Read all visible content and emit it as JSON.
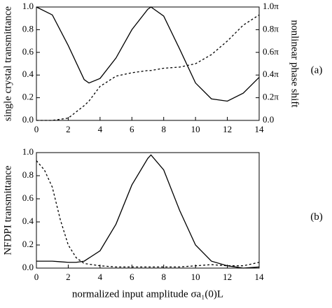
{
  "chart_data": [
    {
      "type": "line",
      "ylabel": "single crystal transmittance",
      "y2label": "nonlinear phase shift",
      "annotation": "(a)",
      "x": [
        0,
        1,
        2,
        3,
        3.3,
        4,
        5,
        6,
        7,
        7.2,
        8,
        9,
        10,
        11,
        12,
        13,
        14
      ],
      "series": [
        {
          "color": "#000000",
          "dash": false,
          "values": [
            1.0,
            0.93,
            0.66,
            0.36,
            0.33,
            0.37,
            0.55,
            0.8,
            0.98,
            1.0,
            0.92,
            0.63,
            0.33,
            0.19,
            0.17,
            0.24,
            0.38
          ]
        },
        {
          "color": "#000000",
          "dash": true,
          "axis": "y2",
          "values": [
            0,
            0.0,
            0.02,
            0.13,
            0.17,
            0.3,
            0.39,
            0.42,
            0.44,
            0.44,
            0.46,
            0.47,
            0.5,
            0.58,
            0.7,
            0.84,
            0.93
          ]
        }
      ],
      "xlim": [
        0,
        14
      ],
      "xticks": [
        0,
        2,
        4,
        6,
        8,
        10,
        12,
        14
      ],
      "ylim": [
        0,
        1
      ],
      "yticks": [
        {
          "value": 0,
          "label": "0.0"
        },
        {
          "value": 0.2,
          "label": "0.2"
        },
        {
          "value": 0.4,
          "label": "0.4"
        },
        {
          "value": 0.6,
          "label": "0.6"
        },
        {
          "value": 0.8,
          "label": "0.8"
        },
        {
          "value": 1,
          "label": "1.0"
        }
      ],
      "y2lim": [
        0,
        1
      ],
      "y2ticks": [
        {
          "value": 0,
          "label": "0.0"
        },
        {
          "value": 0.2,
          "label": "0.2π"
        },
        {
          "value": 0.4,
          "label": "0.4π"
        },
        {
          "value": 0.6,
          "label": "0.6π"
        },
        {
          "value": 0.8,
          "label": "0.8π"
        },
        {
          "value": 1,
          "label": "1.0π"
        }
      ]
    },
    {
      "type": "line",
      "ylabel": "NFDPI transmittance",
      "xlabel": "normalized input amplitude σa₁(0)L",
      "annotation": "(b)",
      "x": [
        0,
        0.5,
        1,
        1.5,
        2,
        2.5,
        3,
        4,
        5,
        6,
        7,
        7.2,
        8,
        9,
        10,
        11,
        12,
        13,
        14
      ],
      "series": [
        {
          "color": "#000000",
          "dash": false,
          "values": [
            0.06,
            0.06,
            0.06,
            0.055,
            0.05,
            0.05,
            0.06,
            0.15,
            0.38,
            0.72,
            0.95,
            0.98,
            0.85,
            0.5,
            0.2,
            0.06,
            0.02,
            0.0,
            0.01
          ]
        },
        {
          "color": "#000000",
          "dash": true,
          "values": [
            0.93,
            0.85,
            0.7,
            0.42,
            0.2,
            0.09,
            0.04,
            0.02,
            0.01,
            0.01,
            0.01,
            0.01,
            0.01,
            0.01,
            0.02,
            0.03,
            0.02,
            0.02,
            0.05
          ]
        }
      ],
      "xlim": [
        0,
        14
      ],
      "xticks": [
        0,
        2,
        4,
        6,
        8,
        10,
        12,
        14
      ],
      "ylim": [
        0,
        1
      ],
      "yticks": [
        {
          "value": 0,
          "label": "0.0"
        },
        {
          "value": 0.2,
          "label": "0.2"
        },
        {
          "value": 0.4,
          "label": "0.4"
        },
        {
          "value": 0.6,
          "label": "0.6"
        },
        {
          "value": 0.8,
          "label": "0.8"
        },
        {
          "value": 1,
          "label": "1.0"
        }
      ]
    }
  ]
}
